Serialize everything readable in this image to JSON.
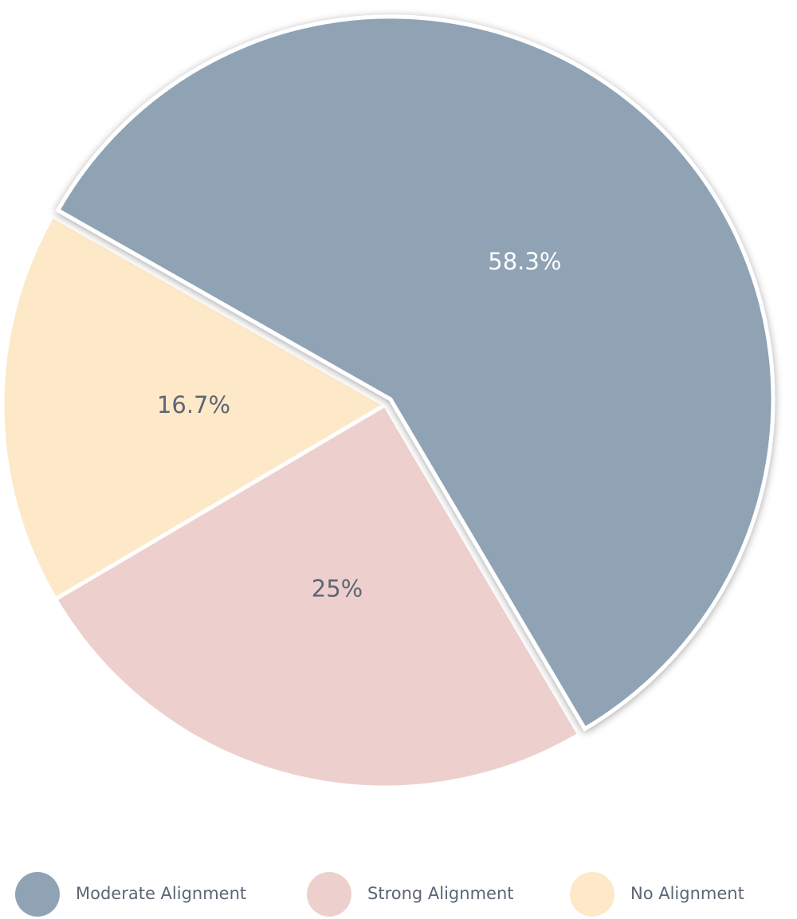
{
  "chart_data": {
    "type": "pie",
    "categories": [
      "Moderate Alignment",
      "Strong Alignment",
      "No Alignment"
    ],
    "series": [
      {
        "values": [
          58.3,
          25,
          16.7
        ],
        "value_labels": [
          "58.3%",
          "25%",
          "16.7%"
        ]
      }
    ],
    "colors": [
      "#8fa3b5",
      "#edd0cd",
      "#fde8c8"
    ],
    "explode": [
      true,
      false,
      false
    ],
    "legend": "bottom"
  }
}
